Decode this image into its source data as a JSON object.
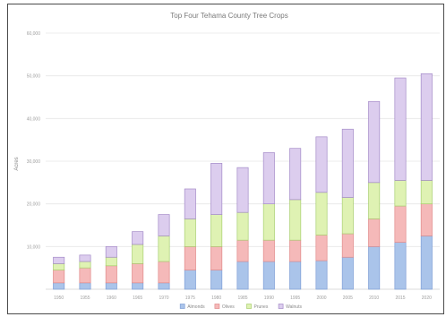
{
  "chart_data": {
    "type": "bar",
    "stacked": true,
    "title": "Top Four Tehama County Tree Crops",
    "xlabel": "",
    "ylabel": "Acres",
    "ylim": [
      0,
      60000
    ],
    "y_ticks": [
      "",
      "10,000",
      "20,000",
      "30,000",
      "40,000",
      "50,000",
      "60,000"
    ],
    "grid": true,
    "legend_position": "bottom",
    "categories": [
      "1950",
      "1955",
      "1960",
      "1965",
      "1970",
      "1975",
      "1980",
      "1985",
      "1990",
      "1995",
      "2000",
      "2005",
      "2010",
      "2015",
      "2020"
    ],
    "series": [
      {
        "name": "Almonds",
        "color": "#aac4ea",
        "stroke": "#7f9fd6",
        "values": [
          1500,
          1500,
          1500,
          1500,
          1500,
          4500,
          4500,
          6500,
          6500,
          6500,
          6700,
          7500,
          10000,
          11000,
          12500
        ]
      },
      {
        "name": "Olives",
        "color": "#f5b9b9",
        "stroke": "#e08a8a",
        "values": [
          3000,
          3500,
          4000,
          4500,
          5000,
          5500,
          5500,
          5000,
          5000,
          5000,
          6000,
          5500,
          6500,
          8500,
          7500
        ]
      },
      {
        "name": "Prunes",
        "color": "#dff2b3",
        "stroke": "#a8cf70",
        "values": [
          1500,
          1500,
          2000,
          4500,
          6000,
          6500,
          7500,
          6500,
          8500,
          9500,
          10000,
          8500,
          8500,
          6000,
          5500
        ]
      },
      {
        "name": "Walnuts",
        "color": "#dccdee",
        "stroke": "#a48ac8",
        "values": [
          1500,
          1500,
          2500,
          3000,
          5000,
          7000,
          12000,
          10500,
          12000,
          12000,
          13000,
          16000,
          19000,
          24000,
          25000
        ]
      }
    ]
  }
}
